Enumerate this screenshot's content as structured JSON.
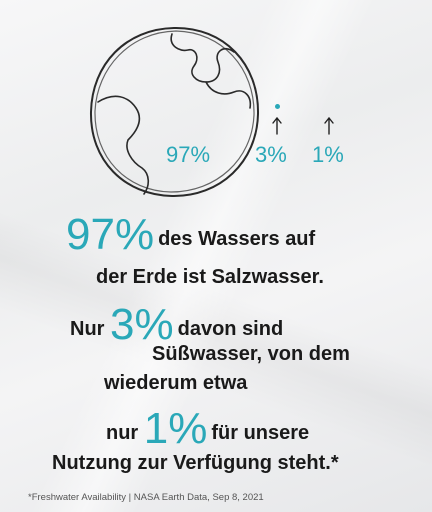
{
  "globe_labels": {
    "salt": "97%",
    "fresh": "3%",
    "usable": "1%"
  },
  "text": {
    "line1_big": "97%",
    "line1_rest": "des Wassers auf",
    "line2": "der Erde ist Salzwasser.",
    "line3_pre": "Nur",
    "line3_big": "3%",
    "line3_rest": "davon sind",
    "line4": "Süßwasser, von dem",
    "line5": "wiederum etwa",
    "line6_pre": "nur",
    "line6_big": "1%",
    "line6_rest": "für unsere",
    "line7": "Nutzung zur Verfügung steht.*"
  },
  "footnote": "*Freshwater Availability | NASA Earth Data, Sep 8, 2021",
  "colors": {
    "accent": "#2aa8b8",
    "text": "#1a1a1a"
  }
}
